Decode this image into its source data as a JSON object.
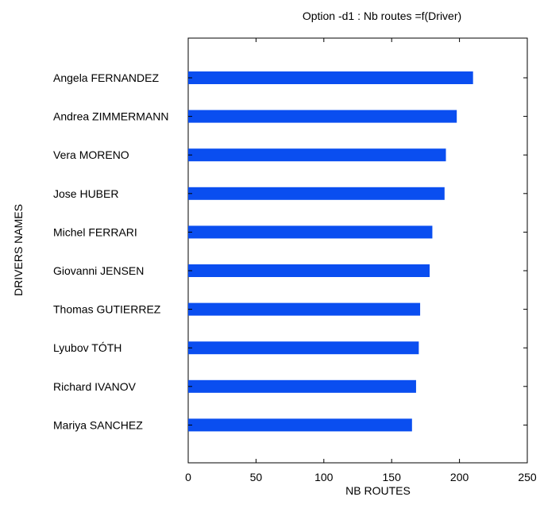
{
  "chart_data": {
    "type": "bar",
    "orientation": "horizontal",
    "title": "Option -d1 : Nb routes =f(Driver)",
    "xlabel": "NB ROUTES",
    "ylabel": "DRIVERS NAMES",
    "xlim": [
      0,
      250
    ],
    "xticks": [
      0,
      50,
      100,
      150,
      200,
      250
    ],
    "grid": false,
    "categories": [
      "Angela FERNANDEZ",
      "Andrea ZIMMERMANN",
      "Vera MORENO",
      "Jose HUBER",
      "Michel FERRARI",
      "Giovanni JENSEN",
      "Thomas GUTIERREZ",
      "Lyubov TÓTH",
      "Richard IVANOV",
      "Mariya SANCHEZ"
    ],
    "values": [
      210,
      198,
      190,
      189,
      180,
      178,
      171,
      170,
      168,
      165
    ],
    "bar_color": "#0a4ef0"
  }
}
